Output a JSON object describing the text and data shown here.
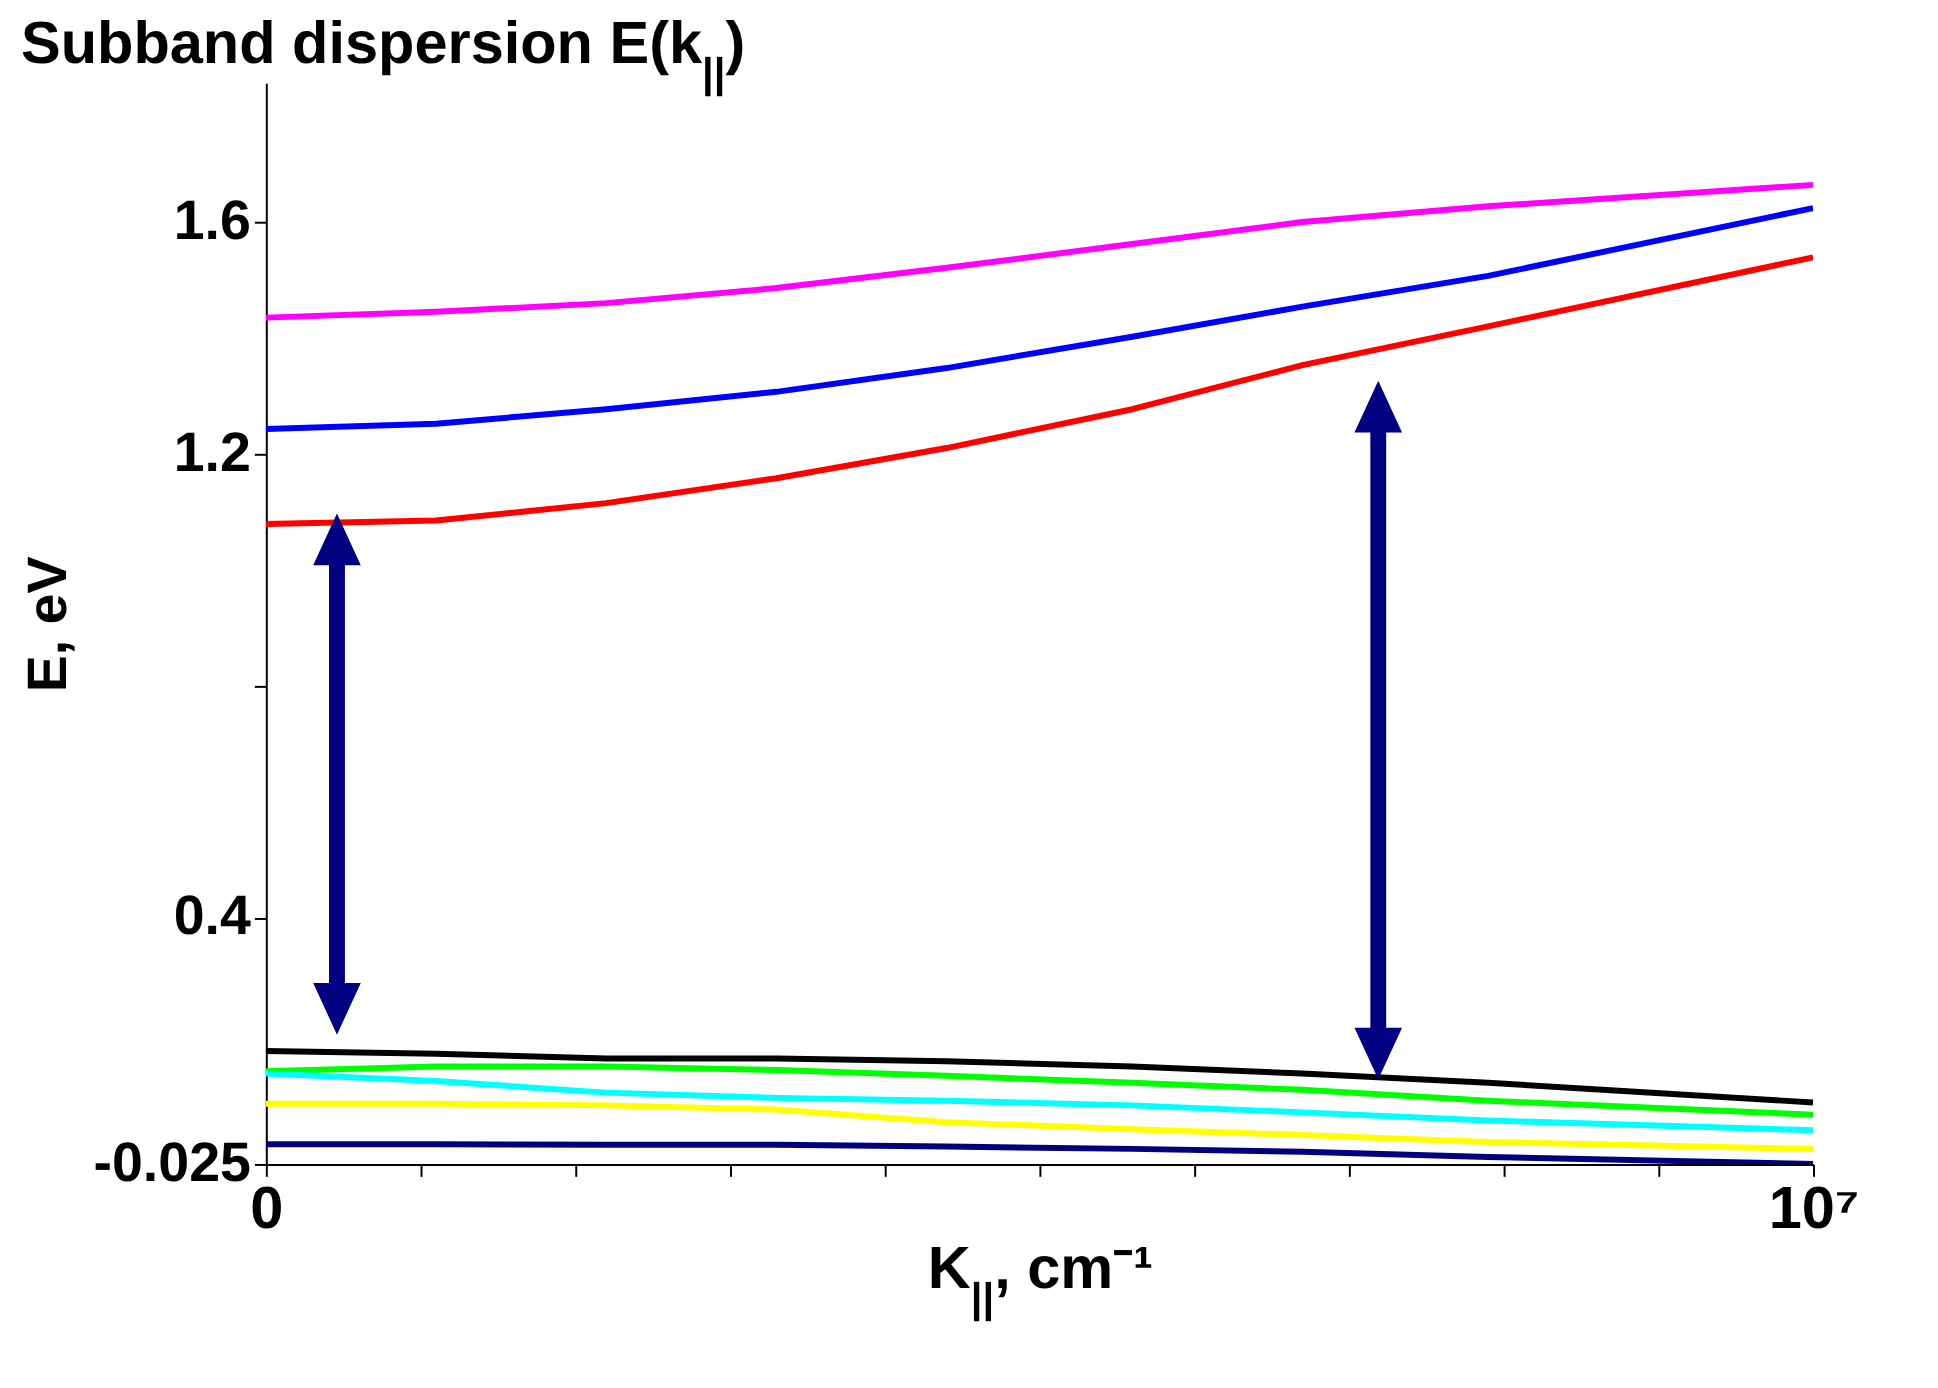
{
  "chart_data": {
    "type": "line",
    "title": "Subband dispersion E(k$_{||}$)",
    "xlabel": "K$_{||}$, cm⁻¹",
    "ylabel": "E, eV",
    "x": [
      0,
      1100000,
      2200000,
      3300000,
      4400000,
      5600000,
      6700000,
      7900000,
      10000000
    ],
    "xlim": [
      0,
      10000000
    ],
    "xticks": [
      0,
      {
        "value": 1000000,
        "label": null
      },
      {
        "value": 2000000,
        "label": null
      },
      {
        "value": 3000000,
        "label": null
      },
      {
        "value": 4000000,
        "label": null
      },
      {
        "value": 5000000,
        "label": null
      },
      {
        "value": 6000000,
        "label": null
      },
      {
        "value": 7000000,
        "label": null
      },
      {
        "value": 8000000,
        "label": null
      },
      {
        "value": 9000000,
        "label": null
      },
      {
        "value": 10000000,
        "label": "10⁷"
      }
    ],
    "ylim": [
      -0.025,
      1.84
    ],
    "yticks": [
      -0.025,
      0.4,
      {
        "value": 0.8,
        "label": null
      },
      1.2,
      1.6
    ],
    "grid": false,
    "legend": false,
    "line_style": "solid",
    "series": [
      {
        "color": "#ff00ff",
        "values": [
          1.435,
          1.445,
          1.46,
          1.486,
          1.521,
          1.562,
          1.6,
          1.627,
          1.664
        ]
      },
      {
        "color": "#0000ff",
        "values": [
          1.243,
          1.252,
          1.277,
          1.307,
          1.348,
          1.402,
          1.454,
          1.507,
          1.624
        ]
      },
      {
        "color": "#ff0000",
        "values": [
          1.079,
          1.085,
          1.115,
          1.158,
          1.21,
          1.277,
          1.353,
          1.42,
          1.539
        ]
      },
      {
        "color": "#000000",
        "values": [
          0.17,
          0.165,
          0.157,
          0.157,
          0.152,
          0.143,
          0.131,
          0.115,
          0.081
        ]
      },
      {
        "color": "#00ff00",
        "values": [
          0.135,
          0.143,
          0.143,
          0.137,
          0.127,
          0.115,
          0.103,
          0.084,
          0.06
        ]
      },
      {
        "color": "#00ffff",
        "values": [
          0.131,
          0.118,
          0.098,
          0.089,
          0.084,
          0.076,
          0.064,
          0.05,
          0.033
        ]
      },
      {
        "color": "#ffff00",
        "values": [
          0.079,
          0.079,
          0.076,
          0.069,
          0.047,
          0.035,
          0.025,
          0.013,
          0.001
        ]
      },
      {
        "color": "#000080",
        "values": [
          0.009,
          0.009,
          0.008,
          0.008,
          0.005,
          0.001,
          -0.004,
          -0.013,
          -0.025
        ]
      }
    ]
  }
}
